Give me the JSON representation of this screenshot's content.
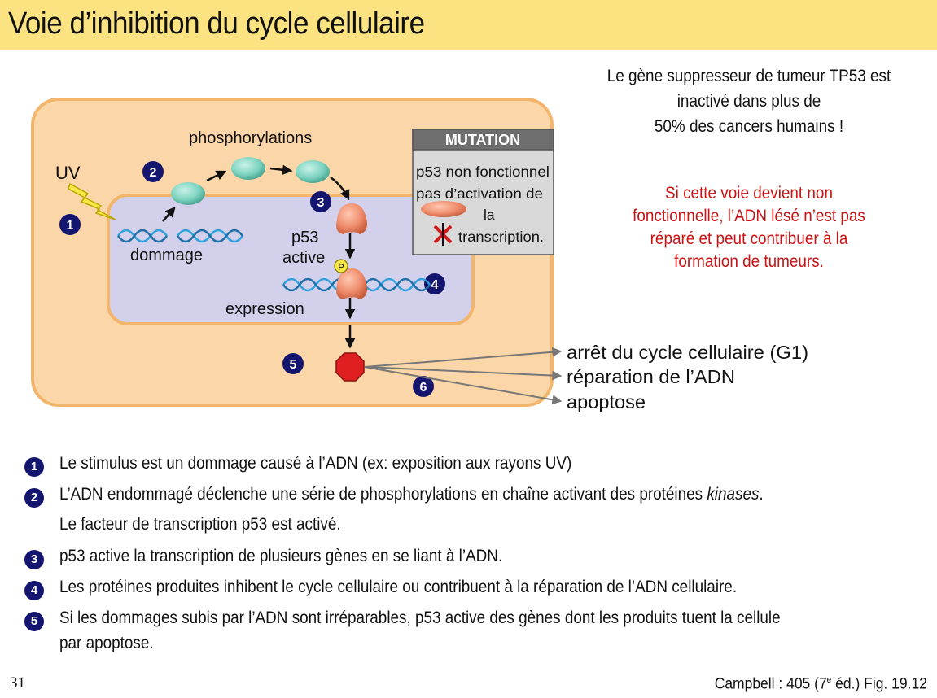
{
  "title": "Voie d’inhibition du cycle cellulaire",
  "side_note": {
    "black_lines": [
      "Le gène suppresseur de tumeur TP53 est",
      "inactivé dans plus de",
      "50% des cancers humains !"
    ],
    "red_lines": [
      "Si cette voie devient non",
      "fonctionnelle, l’ADN lésé n’est pas",
      "réparé et peut contribuer à la",
      "formation de tumeurs."
    ]
  },
  "diagram": {
    "uv": "UV",
    "phosphorylations": "phosphorylations",
    "dommage": "dommage",
    "p53": "p53",
    "active": "active",
    "phospho_p": "P",
    "expression": "expression",
    "steps": [
      "1",
      "2",
      "3",
      "4",
      "5",
      "6"
    ],
    "mutation": {
      "header": "MUTATION",
      "line1": "p53 non fonctionnel",
      "line2": "pas d’activation de",
      "line3": "la",
      "line4": "transcription."
    },
    "outcomes": [
      "arrêt du cycle cellulaire (G1)",
      "réparation de l’ADN",
      "apoptose"
    ],
    "colors": {
      "cell": "#fbd6a8",
      "cell_border": "#f3b56b",
      "nucleus": "#d3d0eb",
      "protein": "#7dd3c0",
      "p53": "#ef8c6b",
      "stop": "#e02020",
      "dna": "#2ea0dc",
      "badge": "#14156e"
    }
  },
  "bullets": [
    {
      "num": "1",
      "lines": [
        "Le stimulus est un dommage causé à l’ADN (ex: exposition aux rayons UV)"
      ]
    },
    {
      "num": "2",
      "lines": [
        "L’ADN endommagé déclenche une série de phosphorylations en chaîne activant des protéines kinases.",
        "Le facteur de transcription p53 est activé."
      ]
    },
    {
      "num": "3",
      "lines": [
        "p53 active la transcription de plusieurs gènes en se liant à l’ADN."
      ]
    },
    {
      "num": "4",
      "lines": [
        "Les protéines produites inhibent le cycle cellulaire ou contribuent à la réparation de l’ADN cellulaire."
      ]
    },
    {
      "num": "5",
      "lines": [
        "Si les dommages subis par l’ADN sont irréparables, p53 active des gènes dont les produits tuent la cellule",
        "par apoptose."
      ]
    }
  ],
  "footer": {
    "page": "31",
    "citation_pre": "Campbell : 405 (7",
    "citation_sup": "e",
    "citation_post": " éd.) Fig. 19.12"
  }
}
